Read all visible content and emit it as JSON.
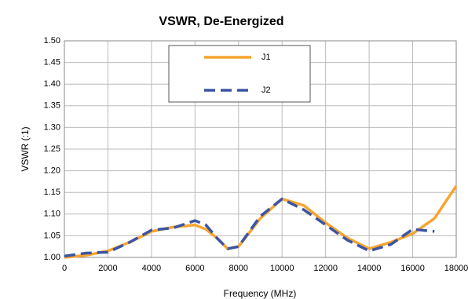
{
  "chart_data": {
    "type": "line",
    "title": "VSWR, De-Energized",
    "x_label": "Frequency (MHz)",
    "y_label": "VSWR (:1)",
    "x": [
      0,
      1000,
      2000,
      3000,
      4000,
      5000,
      6000,
      6500,
      7000,
      7500,
      8000,
      9000,
      10000,
      11000,
      12000,
      13000,
      14000,
      15000,
      16000,
      17000,
      18000
    ],
    "series": [
      {
        "name": "J1",
        "color": "#f7a530",
        "dashed": false,
        "values": [
          1.0,
          1.005,
          1.015,
          1.035,
          1.06,
          1.07,
          1.075,
          1.065,
          1.045,
          1.02,
          1.025,
          1.09,
          1.135,
          1.12,
          1.08,
          1.045,
          1.02,
          1.035,
          1.055,
          1.09,
          1.165
        ]
      },
      {
        "name": "J2",
        "color": "#3b55a3",
        "dashed": true,
        "values": [
          1.003,
          1.01,
          1.012,
          1.035,
          1.063,
          1.068,
          1.085,
          1.075,
          1.045,
          1.02,
          1.025,
          1.095,
          1.135,
          1.11,
          1.075,
          1.04,
          1.015,
          1.03,
          1.065,
          1.06,
          null
        ]
      }
    ],
    "xlim": [
      0,
      18000
    ],
    "xticks": [
      0,
      2000,
      4000,
      6000,
      8000,
      10000,
      12000,
      14000,
      16000,
      18000
    ],
    "ylim": [
      1.0,
      1.5
    ],
    "yticks": [
      {
        "value": 1.0,
        "label": "1.00"
      },
      {
        "value": 1.05,
        "label": "1.05"
      },
      {
        "value": 1.1,
        "label": "1.10"
      },
      {
        "value": 1.15,
        "label": "1.15"
      },
      {
        "value": 1.2,
        "label": "1.20"
      },
      {
        "value": 1.25,
        "label": "1.25"
      },
      {
        "value": 1.3,
        "label": "1.30"
      },
      {
        "value": 1.35,
        "label": "1.35"
      },
      {
        "value": 1.4,
        "label": "1.40"
      },
      {
        "value": 1.45,
        "label": "1.45"
      },
      {
        "value": 1.5,
        "label": "1.50"
      }
    ],
    "grid": true,
    "legend": "top-center"
  }
}
